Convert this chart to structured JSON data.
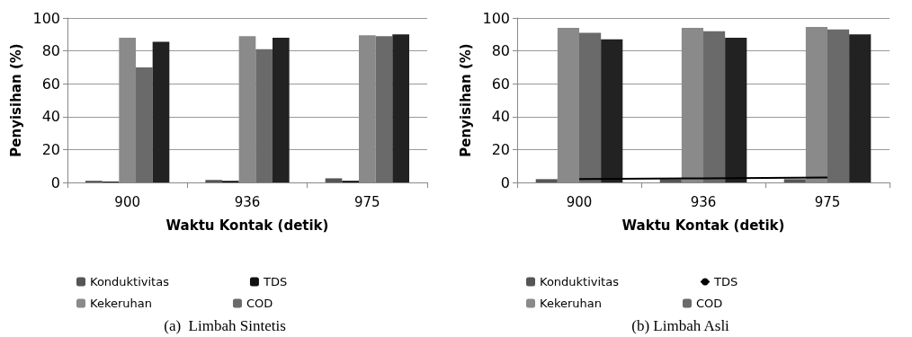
{
  "chart_data": [
    {
      "type": "bar",
      "xlabel": "Waktu Kontak (detik)",
      "ylabel": "Penyisihan (%)",
      "categories": [
        "900",
        "936",
        "975"
      ],
      "ylim": [
        0,
        100
      ],
      "yticks": [
        0,
        20,
        40,
        60,
        80,
        100
      ],
      "grid": "y",
      "legend": "bottom",
      "annotations": [
        "(a)  Limbah Sintetis"
      ],
      "series": [
        {
          "name": "Konduktivitas",
          "color": "#555555",
          "values": [
            1,
            1.5,
            2.5
          ]
        },
        {
          "name": "TDS",
          "color": "#111111",
          "values": [
            0.5,
            1,
            1
          ]
        },
        {
          "name": "Kekeruhan",
          "color": "#8a8a8a",
          "values": [
            88,
            89,
            89.5
          ]
        },
        {
          "name": "COD",
          "color": "#6a6a6a",
          "values": [
            70,
            81,
            89
          ]
        },
        {
          "color": "#222222",
          "values": [
            85.5,
            88,
            90
          ]
        }
      ]
    },
    {
      "type": "bar",
      "xlabel": "Waktu Kontak (detik)",
      "ylabel": "Penyisihan (%)",
      "categories": [
        "900",
        "936",
        "975"
      ],
      "ylim": [
        0,
        100
      ],
      "yticks": [
        0,
        20,
        40,
        60,
        80,
        100
      ],
      "grid": "y",
      "legend": "bottom",
      "annotations": [
        "(b) Limbah Asli"
      ],
      "series": [
        {
          "name": "Konduktivitas",
          "color": "#555555",
          "values": [
            2,
            2,
            2
          ]
        },
        {
          "name": "TDS",
          "type": "line",
          "color": "#000000",
          "values": [
            2,
            2.5,
            3
          ]
        },
        {
          "name": "Kekeruhan",
          "color": "#8a8a8a",
          "values": [
            94,
            94,
            94.5
          ]
        },
        {
          "name": "COD",
          "color": "#6a6a6a",
          "values": [
            91,
            92,
            93
          ]
        },
        {
          "color": "#222222",
          "values": [
            87,
            88,
            90
          ]
        }
      ]
    }
  ]
}
